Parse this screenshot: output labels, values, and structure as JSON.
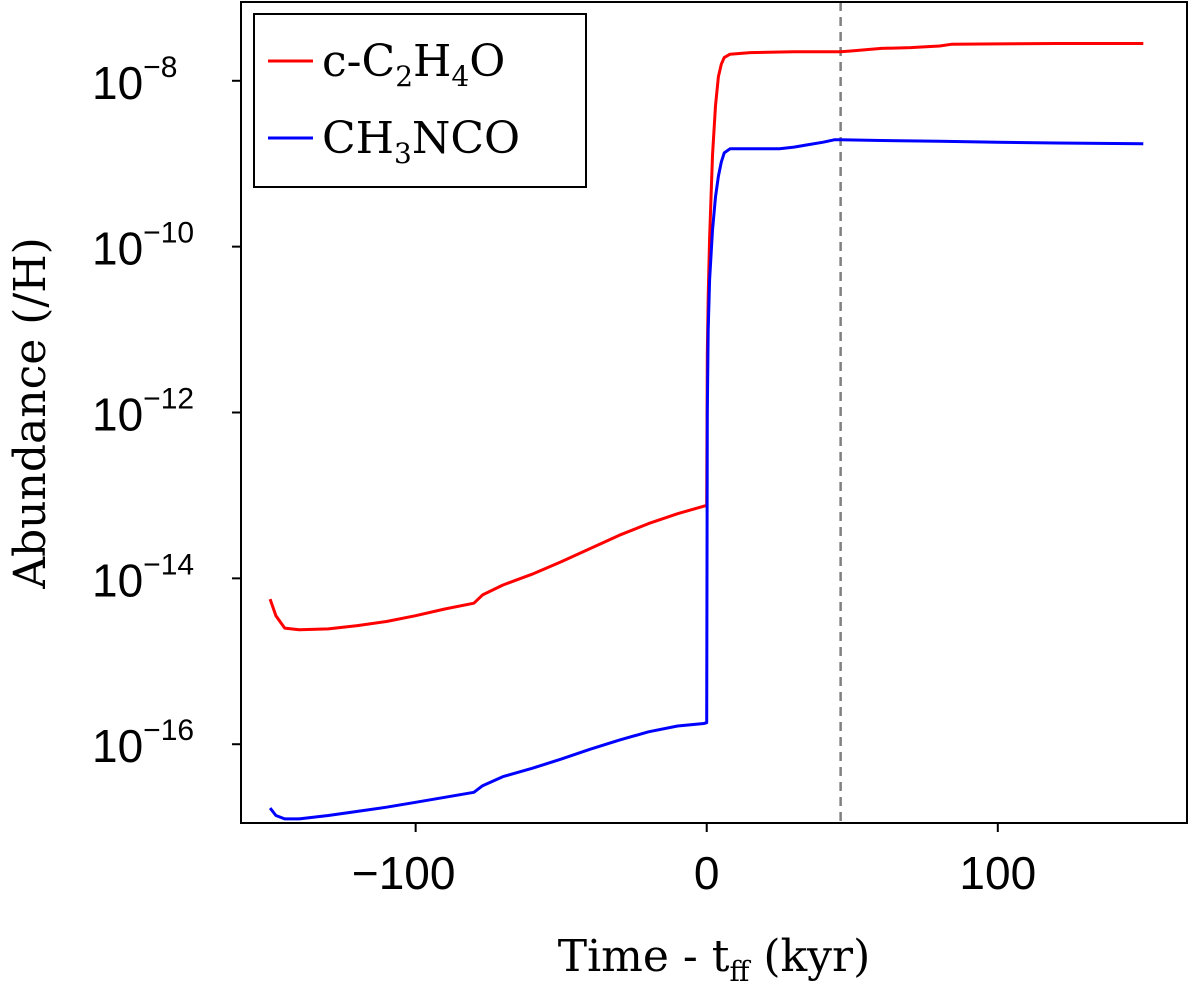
{
  "chart_data": {
    "type": "line",
    "title": "",
    "xlabel": {
      "main": "Time - t",
      "sub": "ff",
      "unit": " (kyr)"
    },
    "ylabel": "Abundance (/H)",
    "xlim": [
      -160,
      165
    ],
    "ylim_log10": [
      -16.95,
      -7.05
    ],
    "x_ticks": [
      {
        "value": -100,
        "label": "−100"
      },
      {
        "value": 0,
        "label": "0"
      },
      {
        "value": 100,
        "label": "100"
      }
    ],
    "y_ticks": [
      {
        "exp": -8,
        "base": "10",
        "sup": "−8"
      },
      {
        "exp": -10,
        "base": "10",
        "sup": "−10"
      },
      {
        "exp": -12,
        "base": "10",
        "sup": "−12"
      },
      {
        "exp": -14,
        "base": "10",
        "sup": "−14"
      },
      {
        "exp": -16,
        "base": "10",
        "sup": "−16"
      }
    ],
    "vline": {
      "x": 46,
      "color": "#808080",
      "style": "dashed"
    },
    "legend": {
      "position": "top-left"
    },
    "series": [
      {
        "name": "c-C2H4O",
        "legend_parts": [
          {
            "t": "c-C",
            "sub": false
          },
          {
            "t": "2",
            "sub": true
          },
          {
            "t": "H",
            "sub": false
          },
          {
            "t": "4",
            "sub": true
          },
          {
            "t": "O",
            "sub": false
          }
        ],
        "color": "#ff0000",
        "points": [
          [
            -150,
            -14.25
          ],
          [
            -148,
            -14.45
          ],
          [
            -145,
            -14.6
          ],
          [
            -140,
            -14.62
          ],
          [
            -130,
            -14.61
          ],
          [
            -120,
            -14.57
          ],
          [
            -110,
            -14.52
          ],
          [
            -100,
            -14.45
          ],
          [
            -90,
            -14.37
          ],
          [
            -80,
            -14.3
          ],
          [
            -77,
            -14.2
          ],
          [
            -70,
            -14.08
          ],
          [
            -60,
            -13.95
          ],
          [
            -50,
            -13.8
          ],
          [
            -40,
            -13.64
          ],
          [
            -30,
            -13.48
          ],
          [
            -20,
            -13.34
          ],
          [
            -10,
            -13.22
          ],
          [
            -1,
            -13.13
          ],
          [
            0,
            -13.12
          ],
          [
            0.2,
            -11.3
          ],
          [
            0.5,
            -10.6
          ],
          [
            1,
            -9.9
          ],
          [
            2,
            -8.9
          ],
          [
            3,
            -8.3
          ],
          [
            4,
            -7.95
          ],
          [
            5,
            -7.8
          ],
          [
            6,
            -7.72
          ],
          [
            8,
            -7.68
          ],
          [
            15,
            -7.66
          ],
          [
            30,
            -7.65
          ],
          [
            46,
            -7.65
          ],
          [
            50,
            -7.64
          ],
          [
            60,
            -7.61
          ],
          [
            70,
            -7.6
          ],
          [
            80,
            -7.58
          ],
          [
            84,
            -7.56
          ],
          [
            100,
            -7.555
          ],
          [
            120,
            -7.55
          ],
          [
            150,
            -7.55
          ]
        ]
      },
      {
        "name": "CH3NCO",
        "legend_parts": [
          {
            "t": "CH",
            "sub": false
          },
          {
            "t": "3",
            "sub": true
          },
          {
            "t": "NCO",
            "sub": false
          }
        ],
        "color": "#0000ff",
        "points": [
          [
            -150,
            -16.77
          ],
          [
            -148,
            -16.86
          ],
          [
            -145,
            -16.9
          ],
          [
            -140,
            -16.9
          ],
          [
            -130,
            -16.86
          ],
          [
            -120,
            -16.81
          ],
          [
            -110,
            -16.76
          ],
          [
            -100,
            -16.7
          ],
          [
            -90,
            -16.64
          ],
          [
            -80,
            -16.58
          ],
          [
            -77,
            -16.5
          ],
          [
            -70,
            -16.39
          ],
          [
            -60,
            -16.29
          ],
          [
            -50,
            -16.18
          ],
          [
            -40,
            -16.06
          ],
          [
            -30,
            -15.95
          ],
          [
            -20,
            -15.85
          ],
          [
            -10,
            -15.78
          ],
          [
            -1,
            -15.75
          ],
          [
            0,
            -15.74
          ],
          [
            0.2,
            -12.0
          ],
          [
            0.5,
            -11.0
          ],
          [
            1,
            -10.4
          ],
          [
            2,
            -9.8
          ],
          [
            3,
            -9.4
          ],
          [
            4,
            -9.15
          ],
          [
            5,
            -8.98
          ],
          [
            6,
            -8.87
          ],
          [
            8,
            -8.82
          ],
          [
            15,
            -8.82
          ],
          [
            25,
            -8.82
          ],
          [
            30,
            -8.8
          ],
          [
            35,
            -8.77
          ],
          [
            40,
            -8.74
          ],
          [
            44,
            -8.71
          ],
          [
            46,
            -8.71
          ],
          [
            60,
            -8.72
          ],
          [
            80,
            -8.73
          ],
          [
            100,
            -8.74
          ],
          [
            120,
            -8.75
          ],
          [
            150,
            -8.76
          ]
        ]
      }
    ]
  }
}
